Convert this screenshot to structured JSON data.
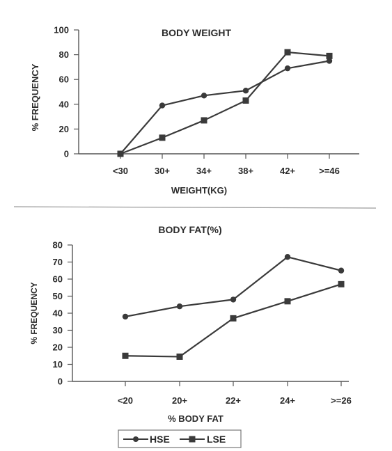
{
  "chart_data": [
    {
      "type": "line",
      "title": "BODY WEIGHT",
      "xlabel": "WEIGHT(KG)",
      "ylabel": "% FREQUENCY",
      "categories": [
        "<30",
        "30+",
        "34+",
        "38+",
        "42+",
        ">=46"
      ],
      "ylim": [
        0,
        100
      ],
      "yticks": [
        0,
        20,
        40,
        60,
        80,
        100
      ],
      "series": [
        {
          "name": "HSE",
          "marker": "circle",
          "values": [
            0,
            39,
            47,
            51,
            69,
            75
          ]
        },
        {
          "name": "LSE",
          "marker": "square",
          "values": [
            0,
            13,
            27,
            43,
            82,
            79
          ]
        }
      ],
      "grid": false
    },
    {
      "type": "line",
      "title": "BODY FAT(%)",
      "xlabel": "% BODY FAT",
      "ylabel": "% FREQUENCY",
      "categories": [
        "<20",
        "20+",
        "22+",
        "24+",
        ">=26"
      ],
      "ylim": [
        0,
        80
      ],
      "yticks": [
        0,
        10,
        20,
        30,
        40,
        50,
        60,
        70,
        80
      ],
      "series": [
        {
          "name": "HSE",
          "marker": "circle",
          "values": [
            38,
            44,
            48,
            73,
            65
          ]
        },
        {
          "name": "LSE",
          "marker": "square",
          "values": [
            15,
            14.5,
            37,
            47,
            57
          ]
        }
      ],
      "grid": false
    }
  ],
  "legend": {
    "placement": "bottom-center",
    "entries": [
      {
        "label": "HSE",
        "marker": "circle"
      },
      {
        "label": "LSE",
        "marker": "square"
      }
    ]
  },
  "colors": {
    "ink": "#3a3a3a",
    "axis": "#555555"
  }
}
